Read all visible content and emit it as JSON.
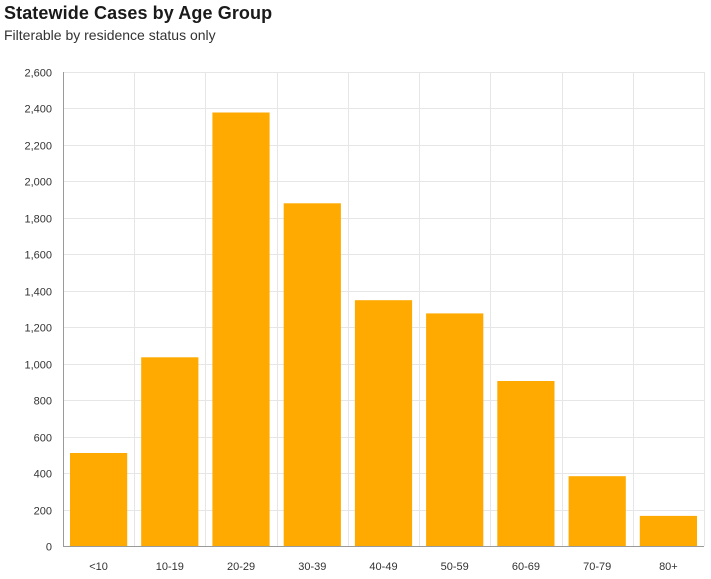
{
  "header": {
    "title": "Statewide Cases by Age Group",
    "subtitle": "Filterable by residence status only"
  },
  "colors": {
    "bar": "#FFAA00",
    "grid": "#e6e6e6",
    "axis": "#9a9a9a"
  },
  "chart_data": {
    "type": "bar",
    "title": "Statewide Cases by Age Group",
    "subtitle": "Filterable by residence status only",
    "xlabel": "",
    "ylabel": "",
    "categories": [
      "<10",
      "10-19",
      "20-29",
      "30-39",
      "40-49",
      "50-59",
      "60-69",
      "70-79",
      "80+"
    ],
    "values": [
      510,
      1035,
      2378,
      1880,
      1348,
      1276,
      905,
      383,
      165
    ],
    "ylim": [
      0,
      2600
    ],
    "yticks": [
      0,
      200,
      400,
      600,
      800,
      1000,
      1200,
      1400,
      1600,
      1800,
      2000,
      2200,
      2400,
      2600
    ],
    "ytick_labels": [
      "0",
      "200",
      "400",
      "600",
      "800",
      "1,000",
      "1,200",
      "1,400",
      "1,600",
      "1,800",
      "2,000",
      "2,200",
      "2,400",
      "2,600"
    ],
    "grid": true,
    "legend": "none"
  }
}
